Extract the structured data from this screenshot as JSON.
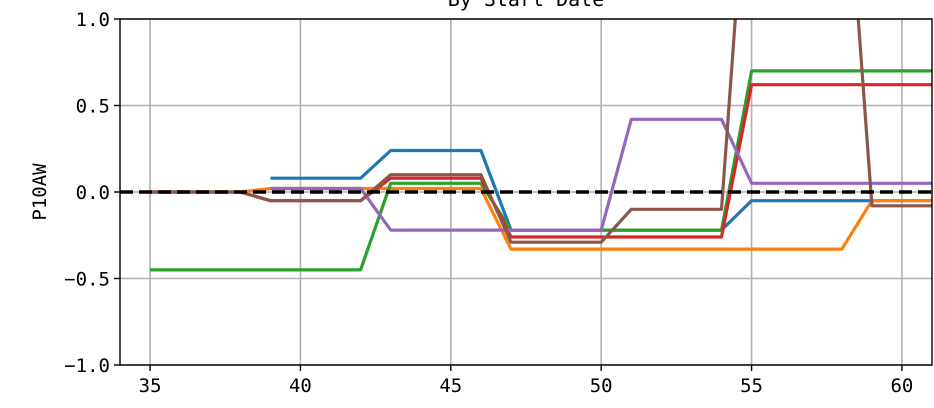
{
  "chart_data": {
    "type": "line",
    "title": "By Start Date",
    "xlabel": "",
    "ylabel": "P10AW",
    "xlim": [
      34,
      61
    ],
    "ylim": [
      -1.0,
      1.0
    ],
    "x_ticks": [
      35,
      40,
      45,
      50,
      55,
      60
    ],
    "y_ticks": [
      -1.0,
      -0.5,
      0.0,
      0.5,
      1.0
    ],
    "x_tick_labels": [
      "35",
      "40",
      "45",
      "50",
      "55",
      "60"
    ],
    "y_tick_labels": [
      "−1.0",
      "−0.5",
      "0.0",
      "0.5",
      "1.0"
    ],
    "grid": true,
    "reference_line": {
      "y": 0.0,
      "style": "dashed",
      "color": "#000000"
    },
    "series": [
      {
        "color": "#1f77b4",
        "x": [
          39,
          42,
          43,
          46,
          47,
          54,
          55,
          58,
          59,
          61
        ],
        "y": [
          0.08,
          0.08,
          0.24,
          0.24,
          -0.22,
          -0.22,
          -0.05,
          -0.05,
          -0.05,
          -0.05
        ]
      },
      {
        "color": "#ff7f0e",
        "x": [
          35,
          38,
          39,
          42,
          43,
          46,
          47,
          58,
          59,
          61
        ],
        "y": [
          0.0,
          0.0,
          0.02,
          0.02,
          0.02,
          0.02,
          -0.33,
          -0.33,
          -0.05,
          -0.05
        ]
      },
      {
        "color": "#2ca02c",
        "x": [
          35,
          42,
          43,
          46,
          47,
          54,
          55,
          61
        ],
        "y": [
          -0.45,
          -0.45,
          0.05,
          0.05,
          -0.22,
          -0.22,
          0.7,
          0.7
        ]
      },
      {
        "color": "#d62728",
        "x": [
          35,
          38,
          39,
          42,
          43,
          46,
          47,
          54,
          55,
          61
        ],
        "y": [
          0.0,
          0.0,
          -0.05,
          -0.05,
          0.08,
          0.08,
          -0.26,
          -0.26,
          0.62,
          0.62
        ]
      },
      {
        "color": "#9467bd",
        "x": [
          39,
          42,
          43,
          50,
          51,
          54,
          55,
          61
        ],
        "y": [
          0.02,
          0.02,
          -0.22,
          -0.22,
          0.42,
          0.42,
          0.05,
          0.05
        ]
      },
      {
        "color": "#8c564b",
        "x": [
          35,
          38,
          39,
          42,
          43,
          46,
          47,
          50,
          51,
          54,
          55,
          58,
          59,
          61
        ],
        "y": [
          0.0,
          0.0,
          -0.05,
          -0.05,
          0.1,
          0.1,
          -0.29,
          -0.29,
          -0.1,
          -0.1,
          2.3,
          2.3,
          -0.08,
          -0.08
        ]
      }
    ]
  }
}
